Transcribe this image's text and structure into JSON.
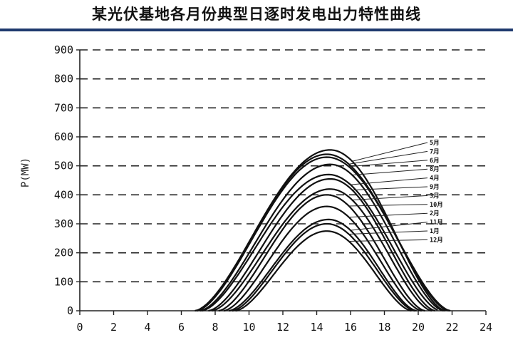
{
  "page_title": "某光伏基地各月份典型日逐时发电出力特性曲线",
  "chart_data": {
    "type": "line",
    "title": "某光伏基地各月份典型日逐时发电出力特性曲线",
    "xlabel": "",
    "ylabel": "P(MW)",
    "xlim": [
      0,
      24
    ],
    "ylim": [
      0,
      900
    ],
    "x_ticks": [
      "0",
      "2",
      "4",
      "6",
      "8",
      "10",
      "12",
      "14",
      "16",
      "18",
      "20",
      "22",
      "24"
    ],
    "y_ticks": [
      "0",
      "100",
      "200",
      "300",
      "400",
      "500",
      "600",
      "700",
      "800",
      "900"
    ],
    "grid": "horizontal dashed",
    "series": [
      {
        "name": "5月",
        "start": 6.8,
        "end": 21.6,
        "peak_x": 14.8,
        "peak": 555
      },
      {
        "name": "7月",
        "start": 6.9,
        "end": 21.8,
        "peak_x": 14.6,
        "peak": 540
      },
      {
        "name": "6月",
        "start": 6.9,
        "end": 21.9,
        "peak_x": 14.6,
        "peak": 530
      },
      {
        "name": "8月",
        "start": 7.1,
        "end": 21.5,
        "peak_x": 14.8,
        "peak": 505
      },
      {
        "name": "4月",
        "start": 7.2,
        "end": 21.3,
        "peak_x": 14.7,
        "peak": 470
      },
      {
        "name": "9月",
        "start": 7.6,
        "end": 21.0,
        "peak_x": 14.8,
        "peak": 455
      },
      {
        "name": "3月",
        "start": 7.8,
        "end": 20.8,
        "peak_x": 14.8,
        "peak": 420
      },
      {
        "name": "10月",
        "start": 8.2,
        "end": 20.4,
        "peak_x": 14.6,
        "peak": 400
      },
      {
        "name": "2月",
        "start": 8.5,
        "end": 20.2,
        "peak_x": 14.6,
        "peak": 360
      },
      {
        "name": "11月",
        "start": 8.8,
        "end": 19.9,
        "peak_x": 14.7,
        "peak": 315
      },
      {
        "name": "1月",
        "start": 9.0,
        "end": 19.8,
        "peak_x": 14.6,
        "peak": 300
      },
      {
        "name": "12月",
        "start": 9.2,
        "end": 19.6,
        "peak_x": 14.6,
        "peak": 275
      }
    ]
  }
}
